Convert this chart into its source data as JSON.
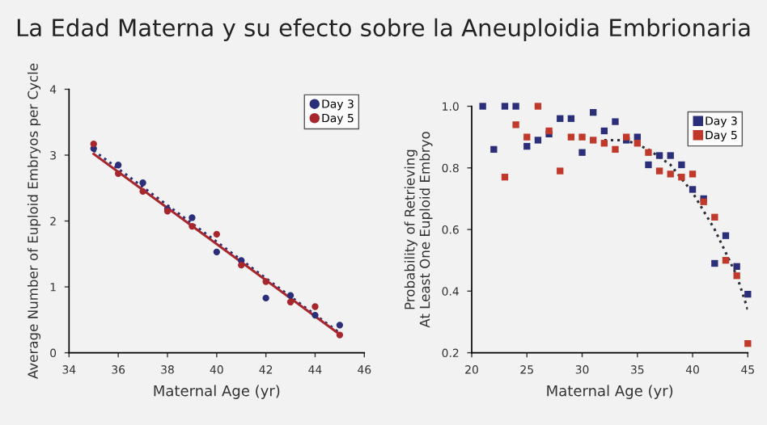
{
  "chart_data": [
    {
      "type": "scatter",
      "title": "La Edad Materna y su efecto sobre la Aneuploidia Embrionaria",
      "xlabel": "Maternal Age (yr)",
      "ylabel": "Average Number of Euploid Embryos per Cycle",
      "x": [
        35,
        36,
        37,
        38,
        39,
        40,
        41,
        42,
        43,
        44,
        45
      ],
      "xlim": [
        34,
        46
      ],
      "xticks": [
        34,
        36,
        38,
        40,
        42,
        44,
        46
      ],
      "ylim": [
        0,
        4
      ],
      "yticks": [
        0,
        1,
        2,
        3,
        4
      ],
      "legend": "top right",
      "marker": "circle",
      "grid": false,
      "series": [
        {
          "name": "Day 3",
          "color": "#2b2f7a",
          "values": [
            3.1,
            2.85,
            2.58,
            2.18,
            2.05,
            1.53,
            1.4,
            0.83,
            0.87,
            0.57,
            0.42
          ]
        },
        {
          "name": "Day 5",
          "color": "#a8272c",
          "values": [
            3.17,
            2.72,
            2.45,
            2.15,
            1.92,
            1.8,
            1.33,
            1.08,
            0.77,
            0.7,
            0.27
          ]
        },
        {
          "type": "line",
          "color": "#2b2f7a",
          "line_style": "dotted",
          "marker": "none",
          "x": [
            35,
            45
          ],
          "values": [
            3.07,
            0.3
          ]
        },
        {
          "type": "line",
          "color": "#a8272c",
          "line_style": "solid",
          "marker": "none",
          "x": [
            35,
            45
          ],
          "values": [
            3.02,
            0.28
          ]
        }
      ]
    },
    {
      "type": "scatter",
      "xlabel": "Maternal Age (yr)",
      "ylabel": "Probability of Retrieving\nAt Least One Euploid Embryo",
      "xlim": [
        20,
        45
      ],
      "xticks": [
        20,
        25,
        30,
        35,
        40,
        45
      ],
      "ylim": [
        0.2,
        1.0
      ],
      "yticks": [
        {
          "value": 0.2,
          "label": "0.2"
        },
        {
          "value": 0.4,
          "label": "0.4"
        },
        {
          "value": 0.6,
          "label": "0.6"
        },
        {
          "value": 0.8,
          "label": "0.8"
        },
        {
          "value": 1.0,
          "label": "1.0"
        }
      ],
      "legend": "top right",
      "marker": "square",
      "grid": false,
      "series": [
        {
          "name": "Day 3",
          "color": "#2b2f7a",
          "x": [
            21,
            22,
            23,
            24,
            25,
            26,
            27,
            28,
            29,
            30,
            31,
            32,
            33,
            34,
            35,
            36,
            37,
            38,
            39,
            40,
            41,
            42,
            43,
            44,
            45
          ],
          "values": [
            1.0,
            0.86,
            1.0,
            1.0,
            0.87,
            0.89,
            0.91,
            0.96,
            0.96,
            0.85,
            0.98,
            0.92,
            0.95,
            0.89,
            0.9,
            0.81,
            0.84,
            0.84,
            0.81,
            0.73,
            0.7,
            0.49,
            0.58,
            0.48,
            0.39
          ]
        },
        {
          "name": "Day 5",
          "color": "#c0392b",
          "x": [
            23,
            24,
            25,
            26,
            27,
            28,
            29,
            30,
            31,
            32,
            33,
            34,
            35,
            36,
            37,
            38,
            39,
            40,
            41,
            42,
            43,
            44,
            45
          ],
          "values": [
            0.77,
            0.94,
            0.9,
            1.0,
            0.92,
            0.79,
            0.9,
            0.9,
            0.89,
            0.88,
            0.86,
            0.9,
            0.88,
            0.85,
            0.79,
            0.78,
            0.77,
            0.78,
            0.69,
            0.64,
            0.5,
            0.45,
            0.23
          ]
        },
        {
          "type": "line",
          "color": "#2b2f3a",
          "line_style": "dotted",
          "marker": "none",
          "x": [
            32,
            34,
            36,
            38,
            40,
            42,
            44,
            45
          ],
          "values": [
            0.89,
            0.89,
            0.86,
            0.81,
            0.72,
            0.6,
            0.45,
            0.34
          ]
        }
      ]
    }
  ]
}
